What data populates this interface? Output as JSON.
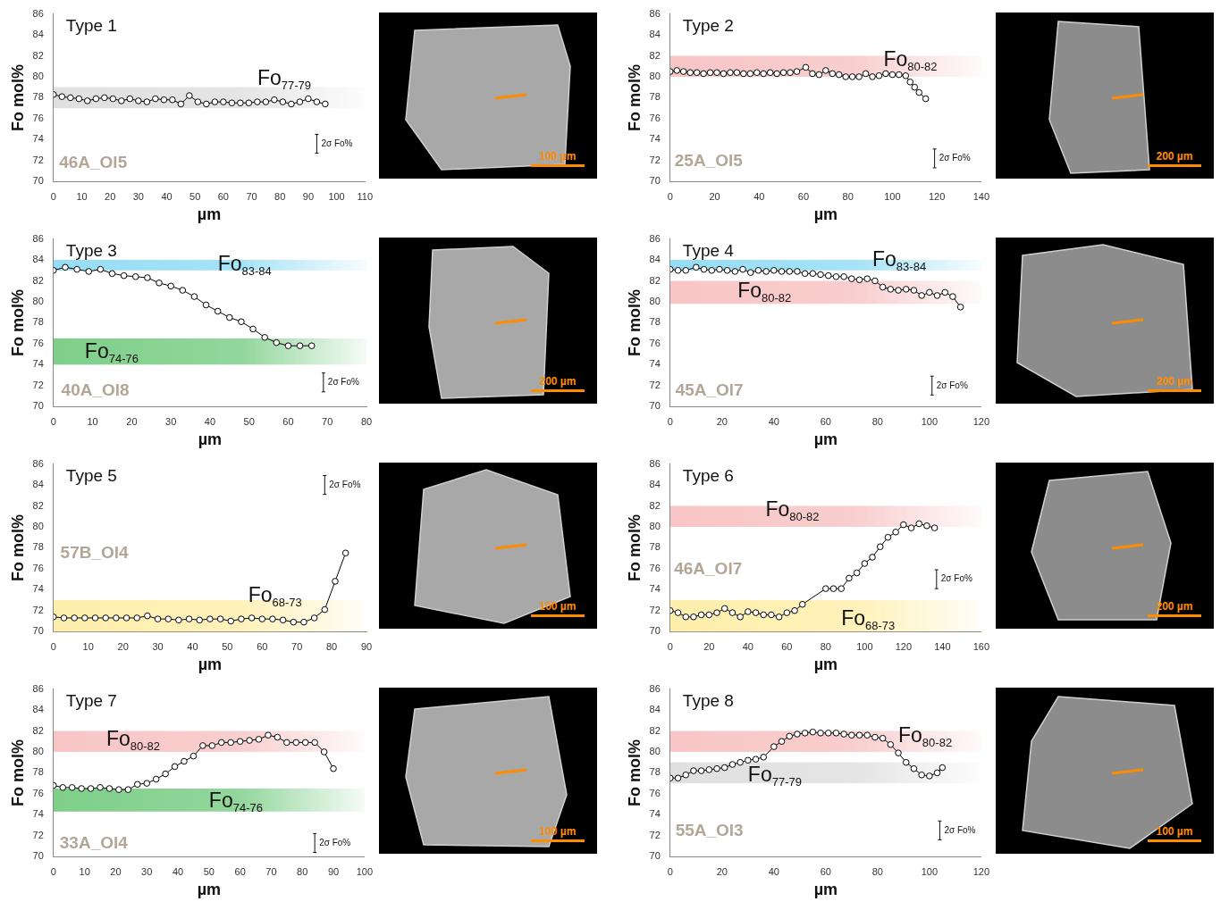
{
  "chart_data": [
    {
      "type": "line",
      "title": "Type 1",
      "sample_label": {
        "text": "46A_Ol5",
        "x": 2,
        "y": 71.3
      },
      "x_label": "µm",
      "y_label": "Fo mol%",
      "grid": false,
      "marker": "open_circle",
      "color": "#000000",
      "x": [
        0,
        3,
        6,
        9,
        12,
        15,
        18,
        21,
        24,
        27,
        30,
        33,
        36,
        39,
        42,
        45,
        48,
        51,
        54,
        57,
        60,
        63,
        66,
        69,
        72,
        75,
        78,
        81,
        84,
        87,
        90,
        93,
        96
      ],
      "values": [
        78.3,
        78.1,
        78.0,
        77.9,
        77.7,
        77.9,
        78.0,
        77.9,
        77.7,
        77.9,
        77.7,
        77.6,
        77.9,
        77.8,
        77.8,
        77.4,
        78.2,
        77.6,
        77.4,
        77.6,
        77.6,
        77.5,
        77.5,
        77.5,
        77.6,
        77.6,
        77.8,
        77.6,
        77.4,
        77.6,
        77.9,
        77.6,
        77.4
      ],
      "xlim": [
        0,
        110
      ],
      "xticks": [
        0,
        10,
        20,
        30,
        40,
        50,
        60,
        70,
        80,
        90,
        100,
        110
      ],
      "ylim": [
        70,
        86
      ],
      "yticks": [
        70,
        72,
        74,
        76,
        78,
        80,
        82,
        84,
        86
      ],
      "bands": [
        {
          "text": "Fo",
          "subscript": "77-79",
          "range": [
            77,
            79
          ],
          "color": "#cfcfcf",
          "x": 72,
          "y": 79.2
        }
      ],
      "error_bar": {
        "label": "2σ Fo%",
        "size": 1.8,
        "x": 93,
        "y": 73.6
      },
      "image": {
        "scale_bar": "100 µm"
      }
    },
    {
      "type": "line",
      "title": "Type 2",
      "sample_label": {
        "text": "25A_Ol5",
        "x": 2,
        "y": 71.5
      },
      "x_label": "µm",
      "y_label": "Fo mol%",
      "grid": false,
      "marker": "open_circle",
      "color": "#000000",
      "x": [
        0,
        3,
        6,
        9,
        12,
        15,
        18,
        21,
        24,
        27,
        30,
        33,
        36,
        39,
        42,
        45,
        48,
        51,
        54,
        57,
        61,
        64,
        67,
        70,
        73,
        76,
        79,
        82,
        85,
        88,
        91,
        94,
        97,
        100,
        103,
        106,
        108,
        110,
        112,
        115
      ],
      "values": [
        80.5,
        80.6,
        80.5,
        80.4,
        80.4,
        80.3,
        80.4,
        80.4,
        80.3,
        80.4,
        80.4,
        80.3,
        80.3,
        80.4,
        80.3,
        80.4,
        80.3,
        80.4,
        80.4,
        80.5,
        80.9,
        80.3,
        80.2,
        80.6,
        80.3,
        80.2,
        80.0,
        80.0,
        80.0,
        80.3,
        80.0,
        80.1,
        80.3,
        80.2,
        80.2,
        80.1,
        79.5,
        79.0,
        78.5,
        77.9
      ],
      "xlim": [
        0,
        140
      ],
      "xticks": [
        0,
        20,
        40,
        60,
        80,
        100,
        120,
        140
      ],
      "ylim": [
        70,
        86
      ],
      "yticks": [
        70,
        72,
        74,
        76,
        78,
        80,
        82,
        84,
        86
      ],
      "bands": [
        {
          "text": "Fo",
          "subscript": "80-82",
          "range": [
            80,
            82
          ],
          "color": "#f4a6a6",
          "x": 96,
          "y": 81.0
        }
      ],
      "error_bar": {
        "label": "2σ Fo%",
        "size": 1.8,
        "x": 119,
        "y": 72.2
      },
      "image": {
        "scale_bar": "200 µm"
      }
    },
    {
      "type": "line",
      "title": "Type 3",
      "sample_label": {
        "text": "40A_Ol8",
        "x": 2,
        "y": 71.0
      },
      "x_label": "µm",
      "y_label": "Fo mol%",
      "grid": false,
      "marker": "open_circle",
      "color": "#000000",
      "x": [
        0,
        3,
        6,
        9,
        12,
        15,
        18,
        21,
        24,
        27,
        30,
        33,
        36,
        39,
        42,
        45,
        48,
        51,
        54,
        57,
        60,
        63,
        66
      ],
      "values": [
        83.0,
        83.3,
        83.1,
        82.9,
        83.1,
        82.7,
        82.5,
        82.4,
        82.3,
        81.8,
        81.5,
        81.1,
        80.5,
        79.7,
        79.1,
        78.5,
        78.1,
        77.4,
        76.6,
        76.1,
        75.8,
        75.8,
        75.8
      ],
      "xlim": [
        0,
        80
      ],
      "xticks": [
        0,
        10,
        20,
        30,
        40,
        50,
        60,
        70,
        80
      ],
      "ylim": [
        70,
        86
      ],
      "yticks": [
        70,
        72,
        74,
        76,
        78,
        80,
        82,
        84,
        86
      ],
      "bands": [
        {
          "text": "Fo",
          "subscript": "83-84",
          "range": [
            83,
            84
          ],
          "color": "#5ccbf0",
          "x": 42,
          "y": 83.0
        },
        {
          "text": "Fo",
          "subscript": "74-76",
          "range": [
            74,
            76.5
          ],
          "color": "#39b54a",
          "x": 8,
          "y": 74.6
        }
      ],
      "error_bar": {
        "label": "2σ Fo%",
        "size": 1.8,
        "x": 69,
        "y": 72.3
      },
      "image": {
        "scale_bar": "200 µm"
      }
    },
    {
      "type": "line",
      "title": "Type 4",
      "sample_label": {
        "text": "45A_Ol7",
        "x": 2,
        "y": 71.0
      },
      "x_label": "µm",
      "y_label": "Fo mol%",
      "grid": false,
      "marker": "open_circle",
      "color": "#000000",
      "x": [
        0,
        3,
        6,
        10,
        13,
        16,
        19,
        22,
        25,
        28,
        31,
        34,
        37,
        40,
        43,
        46,
        49,
        52,
        55,
        58,
        61,
        64,
        67,
        70,
        73,
        76,
        79,
        82,
        85,
        88,
        91,
        94,
        97,
        100,
        103,
        106,
        109,
        112
      ],
      "values": [
        83.1,
        83.0,
        83.0,
        83.3,
        83.1,
        83.0,
        83.1,
        83.0,
        82.9,
        83.1,
        82.8,
        83.0,
        82.9,
        83.0,
        82.9,
        82.9,
        82.9,
        82.7,
        82.7,
        82.6,
        82.5,
        82.4,
        82.4,
        82.2,
        82.1,
        82.2,
        82.0,
        81.4,
        81.2,
        81.1,
        81.2,
        81.1,
        80.6,
        80.9,
        80.6,
        80.9,
        80.5,
        79.5
      ],
      "xlim": [
        0,
        120
      ],
      "xticks": [
        0,
        20,
        40,
        60,
        80,
        100,
        120
      ],
      "ylim": [
        70,
        86
      ],
      "yticks": [
        70,
        72,
        74,
        76,
        78,
        80,
        82,
        84,
        86
      ],
      "bands": [
        {
          "text": "Fo",
          "subscript": "83-84",
          "range": [
            83,
            84
          ],
          "color": "#5ccbf0",
          "x": 78,
          "y": 83.4
        },
        {
          "text": "Fo",
          "subscript": "80-82",
          "range": [
            79.8,
            82
          ],
          "color": "#f4a6a6",
          "x": 26,
          "y": 80.4
        }
      ],
      "error_bar": {
        "label": "2σ Fo%",
        "size": 1.8,
        "x": 101,
        "y": 72.0
      },
      "image": {
        "scale_bar": "200 µm"
      }
    },
    {
      "type": "line",
      "title": "Type 5",
      "sample_label": {
        "text": "57B_Ol4",
        "x": 2,
        "y": 77.0
      },
      "x_label": "µm",
      "y_label": "Fo mol%",
      "grid": false,
      "marker": "open_circle",
      "color": "#000000",
      "x": [
        0,
        3,
        6,
        9,
        12,
        15,
        18,
        21,
        24,
        27,
        30,
        33,
        36,
        39,
        42,
        45,
        48,
        51,
        54,
        57,
        60,
        63,
        66,
        69,
        72,
        75,
        78,
        81,
        84
      ],
      "values": [
        71.4,
        71.3,
        71.3,
        71.3,
        71.3,
        71.3,
        71.3,
        71.3,
        71.3,
        71.5,
        71.2,
        71.2,
        71.1,
        71.2,
        71.1,
        71.2,
        71.2,
        71.0,
        71.2,
        71.3,
        71.2,
        71.2,
        71.1,
        70.9,
        70.9,
        71.3,
        72.1,
        74.8,
        77.5
      ],
      "xlim": [
        0,
        90
      ],
      "xticks": [
        0,
        10,
        20,
        30,
        40,
        50,
        60,
        70,
        80,
        90
      ],
      "ylim": [
        70,
        86
      ],
      "yticks": [
        70,
        72,
        74,
        76,
        78,
        80,
        82,
        84,
        86
      ],
      "bands": [
        {
          "text": "Fo",
          "subscript": "68-73",
          "range": [
            68,
            73
          ],
          "color": "#ffe680",
          "x": 56,
          "y": 72.8
        }
      ],
      "error_bar": {
        "label": "2σ Fo%",
        "size": 1.8,
        "x": 78,
        "y": 84.0
      },
      "image": {
        "scale_bar": "100 µm"
      }
    },
    {
      "type": "line",
      "title": "Type 6",
      "sample_label": {
        "text": "46A_Ol7",
        "x": 2,
        "y": 75.5
      },
      "x_label": "µm",
      "y_label": "Fo mol%",
      "grid": false,
      "marker": "open_circle",
      "color": "#000000",
      "x": [
        0,
        4,
        8,
        12,
        16,
        20,
        24,
        28,
        32,
        36,
        40,
        44,
        48,
        52,
        56,
        60,
        64,
        68,
        80,
        84,
        88,
        92,
        96,
        100,
        104,
        108,
        112,
        116,
        120,
        124,
        128,
        132,
        136
      ],
      "values": [
        72.0,
        71.8,
        71.4,
        71.4,
        71.6,
        71.6,
        71.8,
        72.2,
        71.8,
        71.4,
        71.9,
        71.8,
        71.6,
        71.6,
        71.4,
        71.8,
        72.0,
        72.6,
        74.1,
        74.1,
        74.1,
        75.1,
        75.6,
        76.5,
        77.1,
        78.1,
        79.0,
        79.5,
        80.2,
        79.9,
        80.3,
        80.1,
        79.9
      ],
      "xlim": [
        0,
        160
      ],
      "xticks": [
        0,
        20,
        40,
        60,
        80,
        100,
        120,
        140,
        160
      ],
      "ylim": [
        70,
        86
      ],
      "yticks": [
        70,
        72,
        74,
        76,
        78,
        80,
        82,
        84,
        86
      ],
      "bands": [
        {
          "text": "Fo",
          "subscript": "80-82",
          "range": [
            80,
            82
          ],
          "color": "#f4a6a6",
          "x": 49,
          "y": 81.0
        },
        {
          "text": "Fo",
          "subscript": "68-73",
          "range": [
            68,
            73
          ],
          "color": "#ffe680",
          "x": 88,
          "y": 70.6
        }
      ],
      "error_bar": {
        "label": "2σ Fo%",
        "size": 1.8,
        "x": 137,
        "y": 75.0
      },
      "image": {
        "scale_bar": "200 µm"
      }
    },
    {
      "type": "line",
      "title": "Type 7",
      "sample_label": {
        "text": "33A_Ol4",
        "x": 2,
        "y": 70.8
      },
      "x_label": "µm",
      "y_label": "Fo mol%",
      "grid": false,
      "marker": "open_circle",
      "color": "#000000",
      "x": [
        0,
        3,
        6,
        9,
        12,
        15,
        18,
        21,
        24,
        27,
        30,
        33,
        36,
        39,
        42,
        45,
        48,
        51,
        54,
        57,
        60,
        63,
        66,
        69,
        72,
        75,
        78,
        81,
        84,
        87,
        90
      ],
      "values": [
        76.8,
        76.6,
        76.6,
        76.5,
        76.5,
        76.6,
        76.5,
        76.4,
        76.4,
        76.9,
        77.0,
        77.4,
        77.9,
        78.6,
        79.1,
        79.6,
        80.6,
        80.6,
        80.9,
        80.9,
        81.0,
        81.1,
        81.2,
        81.6,
        81.4,
        80.9,
        80.9,
        80.9,
        80.9,
        80.0,
        78.4
      ],
      "xlim": [
        0,
        100
      ],
      "xticks": [
        0,
        10,
        20,
        30,
        40,
        50,
        60,
        70,
        80,
        90,
        100
      ],
      "ylim": [
        70,
        86
      ],
      "yticks": [
        70,
        72,
        74,
        76,
        78,
        80,
        82,
        84,
        86
      ],
      "bands": [
        {
          "text": "Fo",
          "subscript": "80-82",
          "range": [
            80,
            82
          ],
          "color": "#f4a6a6",
          "x": 17,
          "y": 80.6
        },
        {
          "text": "Fo",
          "subscript": "74-76",
          "range": [
            74.3,
            76.5
          ],
          "color": "#39b54a",
          "x": 50,
          "y": 74.7
        }
      ],
      "error_bar": {
        "label": "2σ Fo%",
        "size": 1.8,
        "x": 84,
        "y": 71.3
      },
      "image": {
        "scale_bar": "100 µm"
      }
    },
    {
      "type": "line",
      "title": "Type 8",
      "sample_label": {
        "text": "55A_Ol3",
        "x": 2,
        "y": 72.0
      },
      "x_label": "µm",
      "y_label": "Fo mol%",
      "grid": false,
      "marker": "open_circle",
      "color": "#000000",
      "x": [
        0,
        3,
        6,
        9,
        12,
        15,
        18,
        21,
        24,
        27,
        30,
        33,
        36,
        40,
        43,
        46,
        49,
        52,
        55,
        58,
        61,
        64,
        67,
        70,
        73,
        76,
        79,
        82,
        85,
        88,
        91,
        94,
        97,
        100,
        103,
        105
      ],
      "values": [
        77.5,
        77.5,
        77.8,
        78.2,
        78.2,
        78.3,
        78.4,
        78.5,
        78.8,
        79.0,
        79.2,
        79.3,
        79.5,
        80.5,
        81.0,
        81.5,
        81.7,
        81.8,
        81.9,
        81.8,
        81.8,
        81.8,
        81.7,
        81.6,
        81.6,
        81.6,
        81.4,
        81.3,
        80.7,
        79.9,
        79.0,
        78.4,
        77.8,
        77.7,
        78.0,
        78.5
      ],
      "xlim": [
        0,
        120
      ],
      "xticks": [
        0,
        20,
        40,
        60,
        80,
        100,
        120
      ],
      "ylim": [
        70,
        86
      ],
      "yticks": [
        70,
        72,
        74,
        76,
        78,
        80,
        82,
        84,
        86
      ],
      "bands": [
        {
          "text": "Fo",
          "subscript": "80-82",
          "range": [
            80,
            82
          ],
          "color": "#f4a6a6",
          "x": 88,
          "y": 80.9
        },
        {
          "text": "Fo",
          "subscript": "77-79",
          "range": [
            77,
            79
          ],
          "color": "#cfcfcf",
          "x": 30,
          "y": 77.2
        }
      ],
      "error_bar": {
        "label": "2σ Fo%",
        "size": 1.8,
        "x": 104,
        "y": 72.5
      },
      "image": {
        "scale_bar": "100 µm"
      }
    }
  ]
}
